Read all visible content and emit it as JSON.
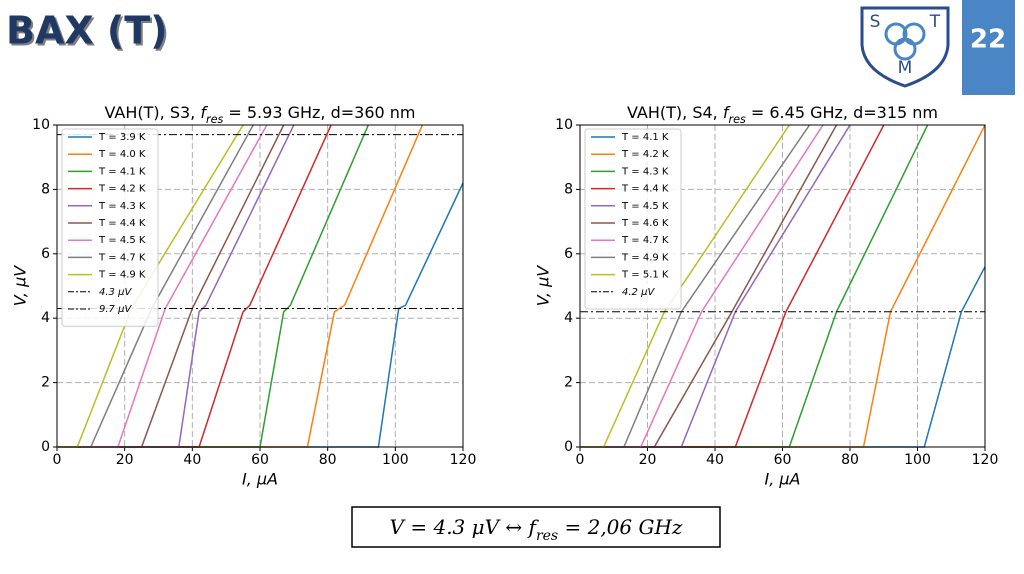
{
  "slide": {
    "title": "ВАХ (T)",
    "page": "22",
    "logo": [
      "S",
      "T",
      "M"
    ],
    "formula": [
      "V = 4.3 μV ↔ ",
      "f",
      "res",
      " = 2,06 GHz"
    ]
  },
  "chart_data": [
    {
      "type": "line",
      "title": [
        "VAH(T), S3, ",
        "f",
        "res",
        " = 5.93 GHz, d=360 nm"
      ],
      "x_label": "I, μA",
      "y_label": "V, μV",
      "xlim": [
        0,
        120
      ],
      "ylim": [
        0,
        10
      ],
      "xticks": [
        0,
        20,
        40,
        60,
        80,
        100,
        120
      ],
      "yticks": [
        0,
        2,
        4,
        6,
        8,
        10
      ],
      "grid": true,
      "series": [
        {
          "name": "T = 3.9 K",
          "color": "#1f77b4",
          "x": [
            0,
            95,
            101,
            103,
            120
          ],
          "values": [
            0,
            0,
            4.3,
            4.4,
            8.2
          ]
        },
        {
          "name": "T = 4.0 K",
          "color": "#ff7f0e",
          "x": [
            0,
            74,
            82,
            85,
            108
          ],
          "values": [
            0,
            0,
            4.2,
            4.4,
            10
          ]
        },
        {
          "name": "T = 4.1 K",
          "color": "#2ca02c",
          "x": [
            0,
            60,
            67,
            69,
            92
          ],
          "values": [
            0,
            0,
            4.2,
            4.4,
            10
          ]
        },
        {
          "name": "T = 4.2 K",
          "color": "#d62728",
          "x": [
            0,
            42,
            55,
            57,
            81
          ],
          "values": [
            0,
            0,
            4.2,
            4.4,
            10
          ]
        },
        {
          "name": "T = 4.3 K",
          "color": "#9467bd",
          "x": [
            0,
            36,
            42,
            44,
            70
          ],
          "values": [
            0,
            0,
            4.2,
            4.4,
            10
          ]
        },
        {
          "name": "T = 4.4 K",
          "color": "#8c564b",
          "x": [
            0,
            25,
            40,
            67
          ],
          "values": [
            0,
            0,
            4.3,
            10
          ]
        },
        {
          "name": "T = 4.5 K",
          "color": "#e377c2",
          "x": [
            0,
            18,
            32,
            62
          ],
          "values": [
            0,
            0,
            4.3,
            10
          ]
        },
        {
          "name": "T = 4.7 K",
          "color": "#7f7f7f",
          "x": [
            0,
            10,
            28,
            58
          ],
          "values": [
            0,
            0,
            4.3,
            10
          ]
        },
        {
          "name": "T = 4.9 K",
          "color": "#bcbd22",
          "x": [
            0,
            6,
            22,
            55
          ],
          "values": [
            0,
            0,
            4.3,
            10
          ]
        }
      ],
      "hlines": [
        {
          "name": "4.3 μV",
          "value": 4.3
        },
        {
          "name": "9.7 μV",
          "value": 9.7
        }
      ]
    },
    {
      "type": "line",
      "title": [
        "VAH(T), S4, ",
        "f",
        "res",
        " = 6.45 GHz, d=315 nm"
      ],
      "x_label": "I, μA",
      "y_label": "V, μV",
      "xlim": [
        0,
        120
      ],
      "ylim": [
        0,
        10
      ],
      "xticks": [
        0,
        20,
        40,
        60,
        80,
        100,
        120
      ],
      "yticks": [
        0,
        2,
        4,
        6,
        8,
        10
      ],
      "grid": true,
      "series": [
        {
          "name": "T = 4.1 K",
          "color": "#1f77b4",
          "x": [
            0,
            102,
            113,
            120
          ],
          "values": [
            0,
            0,
            4.2,
            5.6
          ]
        },
        {
          "name": "T = 4.2 K",
          "color": "#ff7f0e",
          "x": [
            0,
            84,
            92,
            120
          ],
          "values": [
            0,
            0,
            4.2,
            10
          ]
        },
        {
          "name": "T = 4.3 K",
          "color": "#2ca02c",
          "x": [
            0,
            62,
            76,
            103
          ],
          "values": [
            0,
            0,
            4.2,
            10
          ]
        },
        {
          "name": "T = 4.4 K",
          "color": "#d62728",
          "x": [
            0,
            46,
            61,
            90
          ],
          "values": [
            0,
            0,
            4.2,
            10
          ]
        },
        {
          "name": "T = 4.5 K",
          "color": "#9467bd",
          "x": [
            0,
            30,
            46,
            80
          ],
          "values": [
            0,
            0,
            4.2,
            10
          ]
        },
        {
          "name": "T = 4.6 K",
          "color": "#8c564b",
          "x": [
            0,
            22,
            45,
            76
          ],
          "values": [
            0,
            0,
            4.2,
            10
          ]
        },
        {
          "name": "T = 4.7 K",
          "color": "#e377c2",
          "x": [
            0,
            18,
            36,
            72
          ],
          "values": [
            0,
            0,
            4.2,
            10
          ]
        },
        {
          "name": "T = 4.9 K",
          "color": "#7f7f7f",
          "x": [
            0,
            13,
            30,
            68
          ],
          "values": [
            0,
            0,
            4.2,
            10
          ]
        },
        {
          "name": "T = 5.1 K",
          "color": "#bcbd22",
          "x": [
            0,
            7,
            25,
            62
          ],
          "values": [
            0,
            0,
            4.2,
            10
          ]
        }
      ],
      "hlines": [
        {
          "name": "4.2 μV",
          "value": 4.2
        }
      ]
    }
  ]
}
